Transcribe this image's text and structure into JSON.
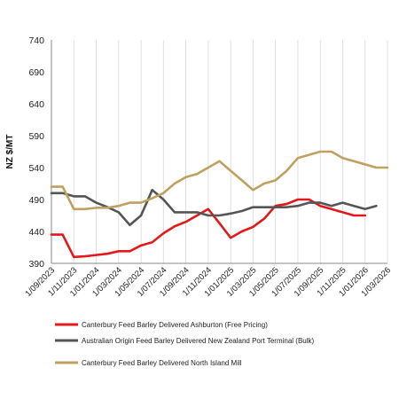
{
  "chart_data": {
    "type": "line",
    "title": "",
    "ylabel": "NZ $/MT",
    "xlabel": "",
    "ylim": [
      390,
      740
    ],
    "yticks": [
      390,
      440,
      490,
      540,
      590,
      640,
      690,
      740
    ],
    "grid": "vertical",
    "legend_position": "bottom",
    "x": [
      "2023-09-01",
      "2023-10-01",
      "2023-11-01",
      "2023-12-01",
      "2024-01-01",
      "2024-02-01",
      "2024-03-01",
      "2024-04-01",
      "2024-05-01",
      "2024-06-01",
      "2024-07-01",
      "2024-08-01",
      "2024-09-01",
      "2024-10-01",
      "2024-11-01",
      "2024-12-01",
      "2025-01-01",
      "2025-02-01",
      "2025-03-01",
      "2025-04-01",
      "2025-05-01",
      "2025-06-01",
      "2025-07-01",
      "2025-08-01",
      "2025-09-01",
      "2025-10-01",
      "2025-11-01",
      "2025-12-01",
      "2026-01-01",
      "2026-02-01",
      "2026-03-01"
    ],
    "xtick_labels": [
      "1/09/2023",
      "1/11/2023",
      "1/01/2024",
      "1/03/2024",
      "1/05/2024",
      "1/07/2024",
      "1/09/2024",
      "1/11/2024",
      "1/01/2025",
      "1/03/2025",
      "1/05/2025",
      "1/07/2025",
      "1/09/2025",
      "1/11/2025",
      "1/01/2026",
      "1/03/2026"
    ],
    "series": [
      {
        "name": "Canterbury Feed Barley Delivered Ashburton (Free Pricing)",
        "color": "#e3191c",
        "values": [
          435,
          435,
          400,
          401,
          403,
          405,
          409,
          409,
          418,
          423,
          437,
          448,
          455,
          465,
          475,
          453,
          430,
          440,
          447,
          460,
          480,
          483,
          490,
          490,
          480,
          475,
          470,
          465,
          465,
          null,
          null
        ]
      },
      {
        "name": "Australian Origin Feed Barley Delivered New Zealand Port Terminal (Bulk)",
        "color": "#555555",
        "values": [
          500,
          500,
          495,
          495,
          485,
          478,
          470,
          450,
          465,
          505,
          490,
          470,
          470,
          470,
          465,
          465,
          468,
          472,
          478,
          478,
          478,
          478,
          480,
          485,
          485,
          480,
          485,
          480,
          475,
          480,
          null
        ]
      },
      {
        "name": "Canterbury Feed Barley Delivered North Island Mill",
        "color": "#c0a060",
        "values": [
          510,
          510,
          475,
          475,
          477,
          477,
          480,
          485,
          485,
          492,
          500,
          515,
          525,
          530,
          540,
          550,
          535,
          520,
          505,
          515,
          520,
          535,
          555,
          560,
          565,
          565,
          555,
          550,
          545,
          540,
          540
        ]
      }
    ]
  }
}
